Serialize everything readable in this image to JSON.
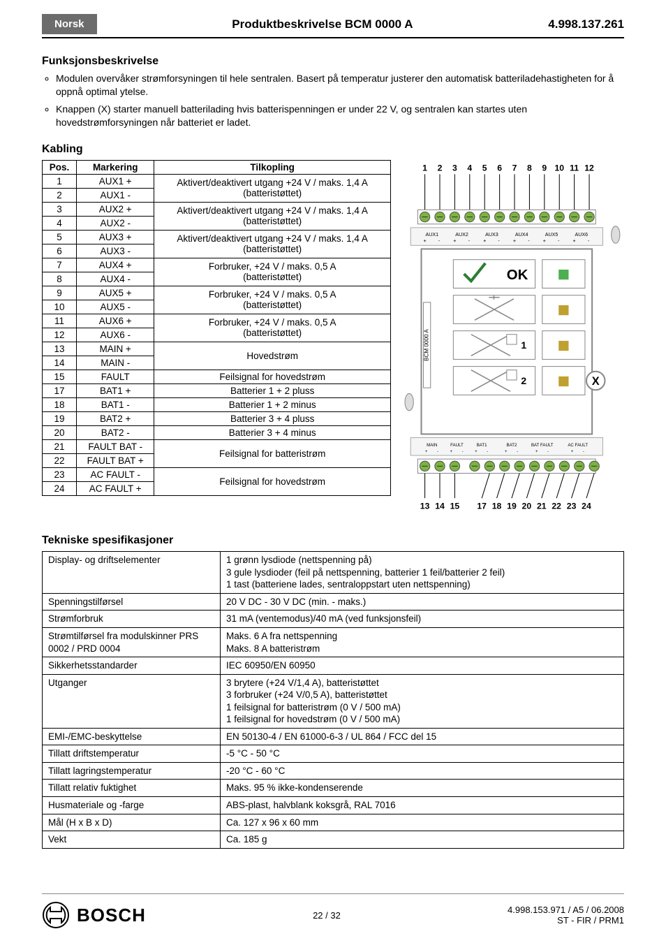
{
  "header": {
    "language": "Norsk",
    "title": "Produktbeskrivelse BCM 0000 A",
    "doc_number": "4.998.137.261"
  },
  "sections": {
    "funksjon_title": "Funksjonsbeskrivelse",
    "bullets": [
      "Modulen overvåker strømforsyningen til hele sentralen. Basert på temperatur justerer den automatisk batteriladehastigheten for å oppnå optimal ytelse.",
      "Knappen (X) starter manuell batterilading hvis batterispenningen er under 22 V, og sentralen kan startes uten hovedstrømforsyningen når batteriet er ladet."
    ],
    "kabling_title": "Kabling",
    "tekniske_title": "Tekniske spesifikasjoner"
  },
  "kabling": {
    "headers": {
      "pos": "Pos.",
      "markering": "Markering",
      "tilkopling": "Tilkopling"
    },
    "rows": [
      {
        "pos": "1",
        "mark": "AUX1 +",
        "merge_start": true,
        "til": "Aktivert/deaktivert utgang +24 V / maks. 1,4 A (batteristøttet)"
      },
      {
        "pos": "2",
        "mark": "AUX1 -"
      },
      {
        "pos": "3",
        "mark": "AUX2 +",
        "merge_start": true,
        "til": "Aktivert/deaktivert utgang +24 V / maks. 1,4 A (batteristøttet)"
      },
      {
        "pos": "4",
        "mark": "AUX2 -"
      },
      {
        "pos": "5",
        "mark": "AUX3 +",
        "merge_start": true,
        "til": "Aktivert/deaktivert utgang +24 V / maks. 1,4 A (batteristøttet)"
      },
      {
        "pos": "6",
        "mark": "AUX3 -"
      },
      {
        "pos": "7",
        "mark": "AUX4 +",
        "merge_start": true,
        "til": "Forbruker, +24 V / maks. 0,5 A (batteristøttet)"
      },
      {
        "pos": "8",
        "mark": "AUX4 -"
      },
      {
        "pos": "9",
        "mark": "AUX5 +",
        "merge_start": true,
        "til": "Forbruker, +24 V / maks. 0,5 A (batteristøttet)"
      },
      {
        "pos": "10",
        "mark": "AUX5 -"
      },
      {
        "pos": "11",
        "mark": "AUX6 +",
        "merge_start": true,
        "til": "Forbruker, +24 V / maks. 0,5 A (batteristøttet)"
      },
      {
        "pos": "12",
        "mark": "AUX6 -"
      },
      {
        "pos": "13",
        "mark": "MAIN +",
        "merge_start": true,
        "til": "Hovedstrøm"
      },
      {
        "pos": "14",
        "mark": "MAIN -"
      },
      {
        "pos": "15",
        "mark": "FAULT",
        "single": true,
        "til": "Feilsignal for hovedstrøm"
      },
      {
        "pos": "17",
        "mark": "BAT1 +",
        "single": true,
        "til": "Batterier 1 + 2 pluss"
      },
      {
        "pos": "18",
        "mark": "BAT1 -",
        "single": true,
        "til": "Batterier 1 + 2 minus"
      },
      {
        "pos": "19",
        "mark": "BAT2 +",
        "single": true,
        "til": "Batterier 3 + 4 pluss"
      },
      {
        "pos": "20",
        "mark": "BAT2 -",
        "single": true,
        "til": "Batterier 3 + 4 minus"
      },
      {
        "pos": "21",
        "mark": "FAULT BAT -",
        "merge_start": true,
        "til": "Feilsignal for batteristrøm"
      },
      {
        "pos": "22",
        "mark": "FAULT BAT +"
      },
      {
        "pos": "23",
        "mark": "AC FAULT -",
        "merge_start": true,
        "til": "Feilsignal for hovedstrøm"
      },
      {
        "pos": "24",
        "mark": "AC FAULT +"
      }
    ]
  },
  "diagram": {
    "top_labels": [
      "1",
      "2",
      "3",
      "4",
      "5",
      "6",
      "7",
      "8",
      "9",
      "10",
      "11",
      "12"
    ],
    "bottom_labels": [
      "13",
      "14",
      "15",
      "17",
      "18",
      "19",
      "20",
      "21",
      "22",
      "23",
      "24"
    ],
    "aux_labels": [
      "AUX1",
      "AUX2",
      "AUX3",
      "AUX4",
      "AUX5",
      "AUX6"
    ],
    "bottom_terminal_labels": [
      "MAIN",
      "FAULT",
      "BAT1",
      "BAT2",
      "BAT FAULT",
      "AC FAULT"
    ],
    "side_text": "BCM 0000 A",
    "ok_text": "OK",
    "x_text": "X",
    "led1": "1",
    "led2": "2",
    "colors": {
      "terminal_green": "#7cb342",
      "panel_border": "#888",
      "check_green": "#2e7d32",
      "led_green": "#4caf50",
      "led_yellow": "#c0a030"
    }
  },
  "specs": {
    "rows": [
      {
        "label": "Display- og driftselementer",
        "value": "1 grønn lysdiode (nettspenning på)\n3 gule lysdioder (feil på nettspenning, batterier 1 feil/batterier 2 feil)\n1 tast (batteriene lades, sentraloppstart uten nettspenning)"
      },
      {
        "label": "Spenningstilførsel",
        "value": "20 V DC - 30 V DC (min. - maks.)"
      },
      {
        "label": "Strømforbruk",
        "value": "31 mA (ventemodus)/40 mA (ved funksjonsfeil)"
      },
      {
        "label": "Strømtilførsel fra modulskinner PRS 0002 / PRD 0004",
        "value": "Maks. 6 A fra nettspenning\nMaks. 8 A batteristrøm"
      },
      {
        "label": "Sikkerhetsstandarder",
        "value": "IEC 60950/EN 60950"
      },
      {
        "label": "Utganger",
        "value": "3 brytere (+24 V/1,4 A), batteristøttet\n3 forbruker (+24 V/0,5 A), batteristøttet\n1 feilsignal for batteristrøm (0 V / 500 mA)\n1 feilsignal for hovedstrøm (0 V / 500 mA)"
      },
      {
        "label": "EMI-/EMC-beskyttelse",
        "value": "EN 50130-4 / EN 61000-6-3 / UL 864 / FCC del 15"
      },
      {
        "label": "Tillatt driftstemperatur",
        "value": "-5 °C - 50 °C"
      },
      {
        "label": "Tillatt lagringstemperatur",
        "value": "-20 °C - 60 °C"
      },
      {
        "label": "Tillatt relativ fuktighet",
        "value": "Maks. 95 % ikke-kondenserende"
      },
      {
        "label": "Husmateriale og -farge",
        "value": "ABS-plast, halvblank koksgrå, RAL 7016"
      },
      {
        "label": "Mål (H x B x D)",
        "value": "Ca. 127 x 96 x 60 mm"
      },
      {
        "label": "Vekt",
        "value": "Ca. 185 g"
      }
    ]
  },
  "footer": {
    "brand": "BOSCH",
    "page": "22 / 32",
    "right1": "4.998.153.971 / A5 / 06.2008",
    "right2": "ST - FIR / PRM1"
  }
}
